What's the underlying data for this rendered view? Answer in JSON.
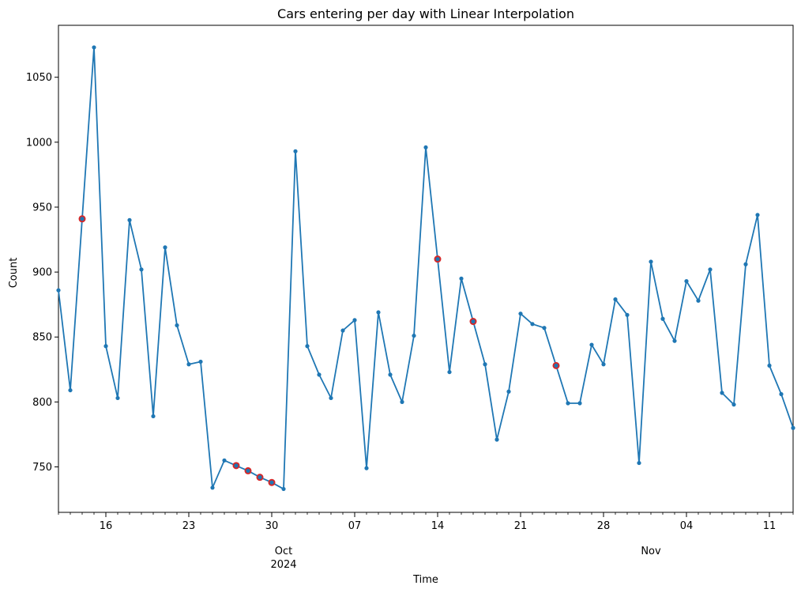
{
  "chart_data": {
    "type": "line",
    "title": "Cars entering per day with Linear Interpolation",
    "xlabel": "Time",
    "ylabel": "Count",
    "x_start": "2024-09-12",
    "x_end": "2024-11-13",
    "ylim": [
      715,
      1090
    ],
    "y_ticks": [
      750,
      800,
      850,
      900,
      950,
      1000,
      1050
    ],
    "x_major_ticks": [
      {
        "date": "2024-09-16",
        "label": "16"
      },
      {
        "date": "2024-09-23",
        "label": "23"
      },
      {
        "date": "2024-09-30",
        "label": "30"
      },
      {
        "date": "2024-10-07",
        "label": "07"
      },
      {
        "date": "2024-10-14",
        "label": "14"
      },
      {
        "date": "2024-10-21",
        "label": "21"
      },
      {
        "date": "2024-10-28",
        "label": "28"
      },
      {
        "date": "2024-11-04",
        "label": "04"
      },
      {
        "date": "2024-11-11",
        "label": "11"
      }
    ],
    "x_month_labels": [
      {
        "date": "2024-10-01",
        "label": "Oct",
        "sublabel": "2024"
      },
      {
        "date": "2024-11-01",
        "label": "Nov",
        "sublabel": ""
      }
    ],
    "grid": false,
    "colors": {
      "line": "#1f77b4",
      "interpolated": "#d62728"
    },
    "series": [
      {
        "x": [
          "2024-09-12",
          "2024-09-13",
          "2024-09-14",
          "2024-09-15",
          "2024-09-16",
          "2024-09-17",
          "2024-09-18",
          "2024-09-19",
          "2024-09-20",
          "2024-09-21",
          "2024-09-22",
          "2024-09-23",
          "2024-09-24",
          "2024-09-25",
          "2024-09-26",
          "2024-09-27",
          "2024-09-28",
          "2024-09-29",
          "2024-09-30",
          "2024-10-01",
          "2024-10-02",
          "2024-10-03",
          "2024-10-04",
          "2024-10-05",
          "2024-10-06",
          "2024-10-07",
          "2024-10-08",
          "2024-10-09",
          "2024-10-10",
          "2024-10-11",
          "2024-10-12",
          "2024-10-13",
          "2024-10-14",
          "2024-10-15",
          "2024-10-16",
          "2024-10-17",
          "2024-10-18",
          "2024-10-19",
          "2024-10-20",
          "2024-10-21",
          "2024-10-22",
          "2024-10-23",
          "2024-10-24",
          "2024-10-25",
          "2024-10-26",
          "2024-10-27",
          "2024-10-28",
          "2024-10-29",
          "2024-10-30",
          "2024-10-31",
          "2024-11-01",
          "2024-11-02",
          "2024-11-03",
          "2024-11-04",
          "2024-11-05",
          "2024-11-06",
          "2024-11-07",
          "2024-11-08",
          "2024-11-09",
          "2024-11-10",
          "2024-11-11",
          "2024-11-12",
          "2024-11-13"
        ],
        "values": [
          886,
          809,
          941,
          1073,
          843,
          803,
          940,
          902,
          789,
          919,
          859,
          829,
          831,
          734,
          755,
          751,
          747,
          742,
          738,
          733,
          993,
          843,
          821,
          803,
          855,
          863,
          749,
          869,
          821,
          800,
          851,
          996,
          910,
          823,
          895,
          862,
          829,
          771,
          808,
          868,
          860,
          857,
          828,
          799,
          799,
          844,
          829,
          879,
          867,
          753,
          908,
          864,
          847,
          893,
          878,
          902,
          807,
          798,
          906,
          944,
          828,
          806,
          780
        ]
      }
    ],
    "interpolated_points": [
      {
        "x": "2024-09-14",
        "value": 941
      },
      {
        "x": "2024-09-27",
        "value": 751
      },
      {
        "x": "2024-09-28",
        "value": 747
      },
      {
        "x": "2024-09-29",
        "value": 742
      },
      {
        "x": "2024-09-30",
        "value": 738
      },
      {
        "x": "2024-10-14",
        "value": 910
      },
      {
        "x": "2024-10-17",
        "value": 862
      },
      {
        "x": "2024-10-24",
        "value": 828
      }
    ]
  }
}
